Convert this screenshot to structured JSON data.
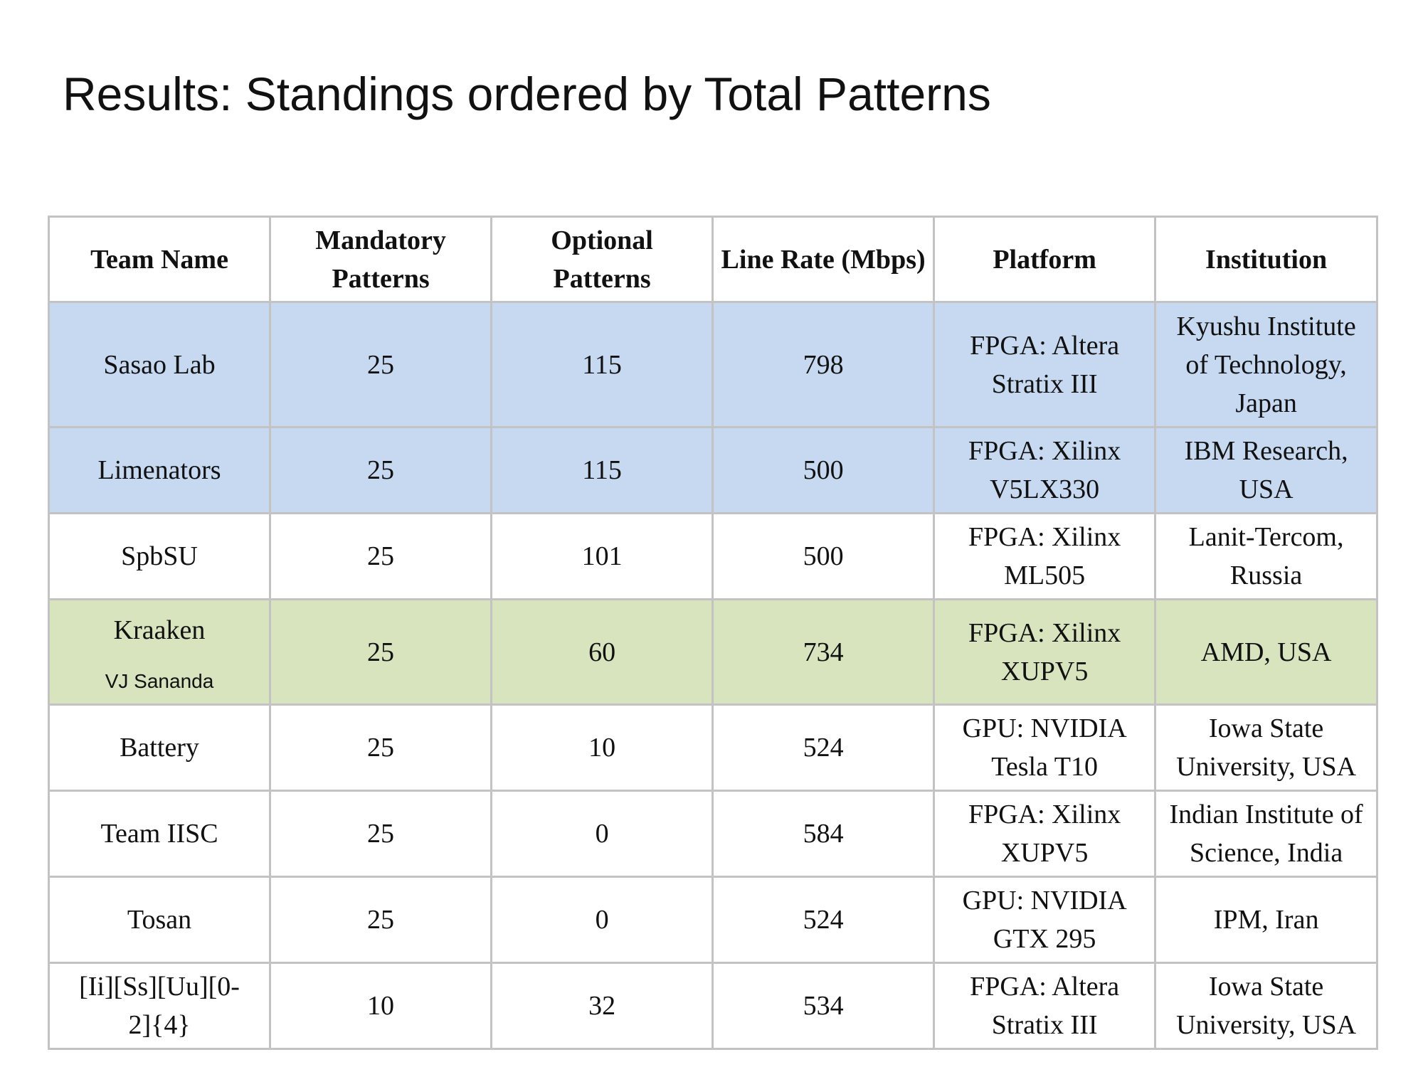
{
  "title": "Results: Standings ordered by Total Patterns",
  "table": {
    "headers": {
      "team_name": "Team Name",
      "mandatory": "Mandatory\nPatterns",
      "optional": "Optional\nPatterns",
      "line_rate": "Line Rate (Mbps)",
      "platform": "Platform",
      "institution": "Institution"
    },
    "rows": [
      {
        "team": "Sasao Lab",
        "mandatory": "25",
        "optional": "115",
        "line_rate": "798",
        "platform": "FPGA: Altera\nStratix III",
        "institution": "Kyushu Institute\nof Technology,\nJapan",
        "highlight": "blue"
      },
      {
        "team": "Limenators",
        "mandatory": "25",
        "optional": "115",
        "line_rate": "500",
        "platform": "FPGA: Xilinx\nV5LX330",
        "institution": "IBM Research,\nUSA",
        "highlight": "blue"
      },
      {
        "team": "SpbSU",
        "mandatory": "25",
        "optional": "101",
        "line_rate": "500",
        "platform": "FPGA: Xilinx\nML505",
        "institution": "Lanit-Tercom,\nRussia",
        "highlight": "none"
      },
      {
        "team": "Kraaken",
        "member": "VJ Sananda",
        "mandatory": "25",
        "optional": "60",
        "line_rate": "734",
        "platform": "FPGA: Xilinx\nXUPV5",
        "institution": "AMD, USA",
        "highlight": "green"
      },
      {
        "team": "Battery",
        "mandatory": "25",
        "optional": "10",
        "line_rate": "524",
        "platform": "GPU: NVIDIA\nTesla T10",
        "institution": "Iowa State\nUniversity, USA",
        "highlight": "none"
      },
      {
        "team": "Team IISC",
        "mandatory": "25",
        "optional": "0",
        "line_rate": "584",
        "platform": "FPGA: Xilinx\nXUPV5",
        "institution": "Indian Institute of\nScience, India",
        "highlight": "none"
      },
      {
        "team": "Tosan",
        "mandatory": "25",
        "optional": "0",
        "line_rate": "524",
        "platform": "GPU: NVIDIA\nGTX 295",
        "institution": "IPM, Iran",
        "highlight": "none"
      },
      {
        "team": "[Ii][Ss][Uu][0-\n2]{4}",
        "mandatory": "10",
        "optional": "32",
        "line_rate": "534",
        "platform": "FPGA: Altera\nStratix III",
        "institution": "Iowa State\nUniversity, USA",
        "highlight": "none"
      }
    ]
  },
  "colors": {
    "highlight_blue": "#c6d9f0",
    "highlight_green": "#d7e4bd",
    "border": "#c3c3c3",
    "text": "#111111"
  }
}
